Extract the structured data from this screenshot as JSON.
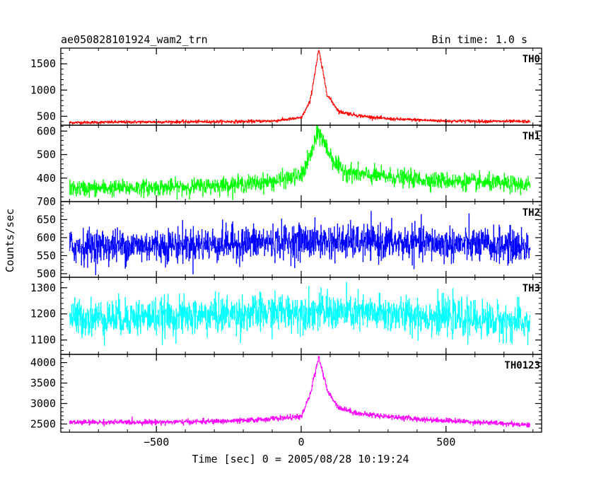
{
  "chart_data": {
    "type": "line",
    "title": "ae050828101924_wam2_trn",
    "bin_time_label": "Bin time: 1.0 s",
    "xlabel": "Time [sec] 0 = 2005/08/28 10:19:24",
    "ylabel": "Counts/sec",
    "xlim": [
      -830,
      830
    ],
    "x_ticks": [
      -500,
      0,
      500
    ],
    "x_tick_labels": [
      "−500",
      "0",
      "500"
    ],
    "data_x_range": [
      -800,
      790
    ],
    "bin_seconds": 1.0,
    "grid": false,
    "panels": [
      {
        "name": "TH0",
        "color": "#ff0000",
        "ylim": [
          330,
          1800
        ],
        "y_ticks": [
          500,
          1000,
          1500
        ],
        "y_tick_labels": [
          "500",
          "1000",
          "1500"
        ],
        "baseline": 390,
        "noise_sd": 14,
        "peak_time": 60,
        "peak_value": 1760,
        "shoulder_time": 150,
        "shoulder_value": 590,
        "x": [
          -800,
          -600,
          -400,
          -200,
          -100,
          0,
          30,
          60,
          90,
          130,
          200,
          300,
          500,
          790
        ],
        "y": [
          380,
          390,
          395,
          400,
          410,
          470,
          780,
          1760,
          900,
          590,
          510,
          450,
          410,
          400
        ]
      },
      {
        "name": "TH1",
        "color": "#00ff00",
        "ylim": [
          300,
          625
        ],
        "y_ticks": [
          400,
          500,
          600
        ],
        "y_tick_labels": [
          "400",
          "500",
          "600"
        ],
        "baseline": 365,
        "noise_sd": 17,
        "peak_time": 60,
        "peak_value": 600,
        "x": [
          -800,
          -400,
          -200,
          -100,
          0,
          30,
          60,
          90,
          130,
          200,
          400,
          790
        ],
        "y": [
          355,
          362,
          375,
          385,
          410,
          490,
          600,
          520,
          440,
          415,
          395,
          370
        ]
      },
      {
        "name": "TH2",
        "color": "#0000ff",
        "ylim": [
          490,
          700
        ],
        "y_ticks": [
          500,
          550,
          600,
          650,
          700
        ],
        "y_tick_labels": [
          "500",
          "550",
          "600",
          "650",
          "700"
        ],
        "baseline": 580,
        "noise_sd": 24,
        "x": [
          -800,
          -400,
          0,
          400,
          790
        ],
        "y": [
          575,
          580,
          590,
          585,
          575
        ]
      },
      {
        "name": "TH3",
        "color": "#00ffff",
        "ylim": [
          1045,
          1340
        ],
        "y_ticks": [
          1100,
          1200,
          1300
        ],
        "y_tick_labels": [
          "1100",
          "1200",
          "1300"
        ],
        "baseline": 1185,
        "noise_sd": 35,
        "x": [
          -800,
          -400,
          0,
          400,
          790
        ],
        "y": [
          1185,
          1190,
          1210,
          1195,
          1165
        ]
      },
      {
        "name": "TH0123",
        "color": "#ff00ff",
        "ylim": [
          2300,
          4200
        ],
        "y_ticks": [
          2500,
          3000,
          3500,
          4000
        ],
        "y_tick_labels": [
          "2500",
          "3000",
          "3500",
          "4000"
        ],
        "baseline": 2540,
        "noise_sd": 30,
        "peak_time": 60,
        "peak_value": 4150,
        "x": [
          -800,
          -400,
          -200,
          0,
          30,
          60,
          90,
          130,
          200,
          400,
          790
        ],
        "y": [
          2540,
          2550,
          2580,
          2680,
          3200,
          4150,
          3300,
          2900,
          2750,
          2620,
          2480
        ]
      }
    ]
  }
}
